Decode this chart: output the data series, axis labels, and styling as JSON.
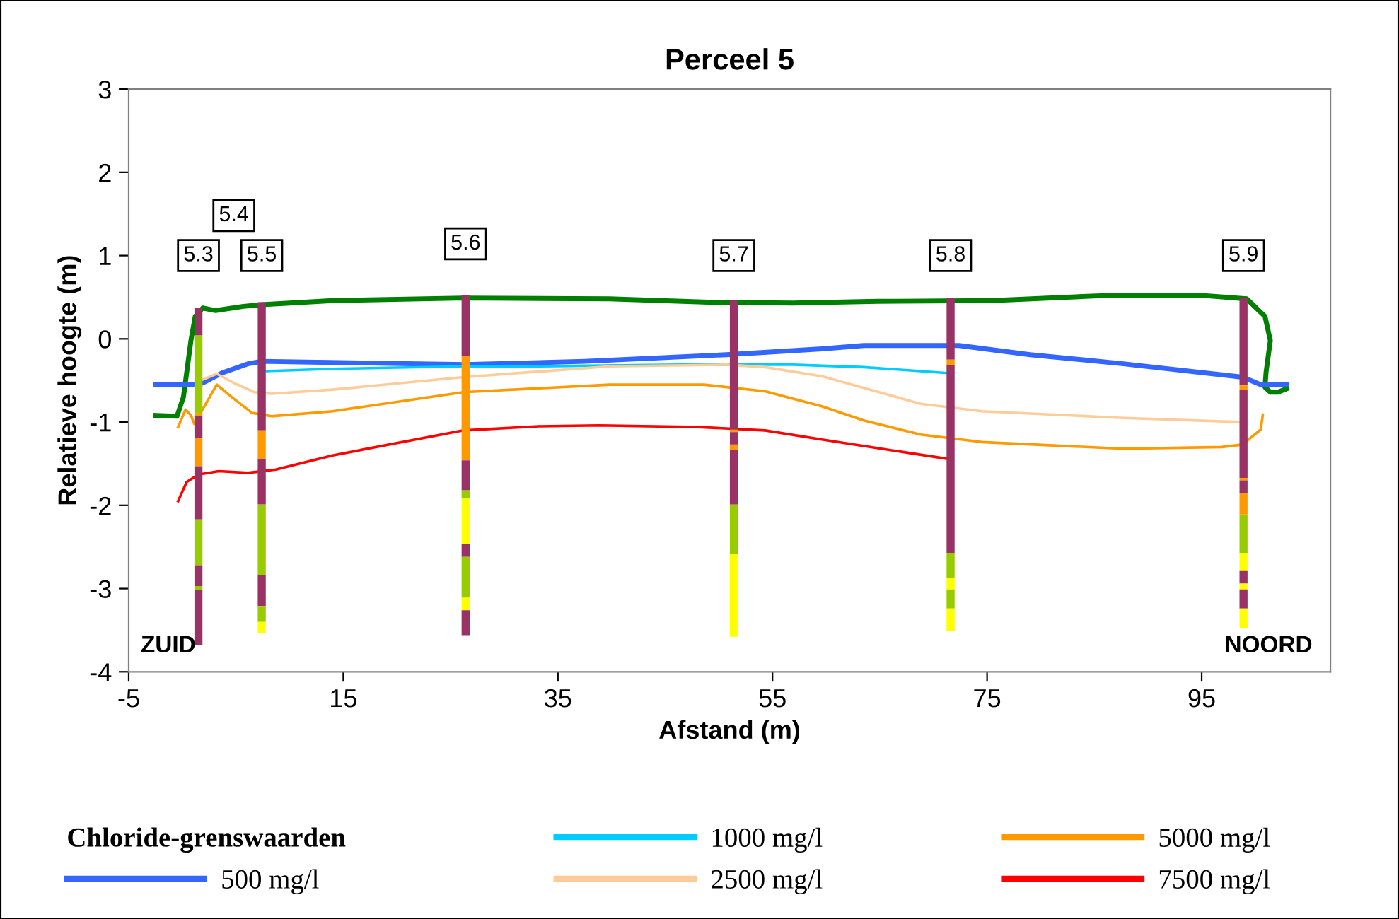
{
  "chart_data": {
    "type": "line",
    "title": "Perceel 5",
    "xlabel": "Afstand (m)",
    "ylabel": "Relatieve hoogte (m)",
    "legend_title": "Chloride-grenswaarden",
    "legend": "bottom",
    "grid": false,
    "xlim": [
      -5,
      107
    ],
    "xticks": [
      -5,
      15,
      35,
      55,
      75,
      95
    ],
    "ylim": [
      -4,
      3
    ],
    "yticks": [
      -4,
      -3,
      -2,
      -1,
      0,
      1,
      2,
      3
    ],
    "annotations": [
      {
        "text": "5.3",
        "x": 1.5,
        "y": 1.0
      },
      {
        "text": "5.4",
        "x": 4.8,
        "y": 1.48
      },
      {
        "text": "5.5",
        "x": 7.4,
        "y": 1.0
      },
      {
        "text": "5.6",
        "x": 26.4,
        "y": 1.14
      },
      {
        "text": "5.7",
        "x": 51.4,
        "y": 1.0
      },
      {
        "text": "5.8",
        "x": 71.6,
        "y": 1.0
      },
      {
        "text": "5.9",
        "x": 98.9,
        "y": 1.0
      },
      "ZUID",
      "NOORD"
    ],
    "series": [
      {
        "color": "#008000",
        "x": [
          -2.5,
          -0.5,
          0.1,
          0.8,
          1.2,
          1.9,
          3.1,
          5.7,
          7.4,
          14.0,
          26.2,
          39.8,
          49.0,
          56.9,
          64.8,
          75.4,
          86.0,
          95.2,
          99.2,
          100.9,
          101.4,
          101.0,
          100.9,
          101.4,
          102.1,
          102.9
        ],
        "values": [
          -0.92,
          -0.93,
          -0.7,
          -0.02,
          0.27,
          0.37,
          0.34,
          0.39,
          0.41,
          0.46,
          0.49,
          0.48,
          0.44,
          0.43,
          0.45,
          0.46,
          0.52,
          0.52,
          0.48,
          0.27,
          -0.02,
          -0.4,
          -0.58,
          -0.64,
          -0.64,
          -0.6
        ]
      },
      {
        "name": "500 mg/l",
        "color": "#3366ff",
        "x": [
          -2.5,
          0.8,
          1.9,
          3.7,
          6.1,
          7.4,
          26.4,
          37.5,
          50.7,
          59.6,
          63.5,
          72.4,
          79.0,
          87.7,
          98.8,
          100.5,
          102.9
        ],
        "values": [
          -0.55,
          -0.55,
          -0.53,
          -0.41,
          -0.3,
          -0.27,
          -0.31,
          -0.27,
          -0.19,
          -0.12,
          -0.08,
          -0.08,
          -0.19,
          -0.3,
          -0.46,
          -0.55,
          -0.55
        ]
      },
      {
        "name": "1000 mg/l",
        "color": "#00ccff",
        "x": [
          7.4,
          14.0,
          26.2,
          33.2,
          46.4,
          54.3,
          56.9,
          63.5,
          71.2
        ],
        "values": [
          -0.39,
          -0.36,
          -0.33,
          -0.33,
          -0.31,
          -0.31,
          -0.31,
          -0.34,
          -0.41
        ]
      },
      {
        "name": "2500 mg/l",
        "color": "#ffcc99",
        "x": [
          1.5,
          3.2,
          4.8,
          6.7,
          8.3,
          14.0,
          26.2,
          39.8,
          50.7,
          54.3,
          59.6,
          68.8,
          74.5,
          87.7,
          98.8
        ],
        "values": [
          -0.51,
          -0.42,
          -0.53,
          -0.64,
          -0.66,
          -0.61,
          -0.46,
          -0.33,
          -0.31,
          -0.34,
          -0.45,
          -0.78,
          -0.87,
          -0.95,
          -1.0
        ]
      },
      {
        "name": "5000 mg/l",
        "color": "#ff9900",
        "x": [
          -0.4,
          0.3,
          0.8,
          1.1,
          1.7,
          3.2,
          4.8,
          6.5,
          8.3,
          14.0,
          26.2,
          39.8,
          48.6,
          54.3,
          59.6,
          63.5,
          68.8,
          74.5,
          87.7,
          96.9,
          98.8,
          100.5,
          100.7
        ],
        "values": [
          -1.06,
          -0.85,
          -0.92,
          -1.02,
          -0.89,
          -0.55,
          -0.72,
          -0.89,
          -0.93,
          -0.87,
          -0.64,
          -0.55,
          -0.55,
          -0.63,
          -0.81,
          -0.98,
          -1.15,
          -1.24,
          -1.32,
          -1.3,
          -1.27,
          -1.09,
          -0.91
        ]
      },
      {
        "name": "7500 mg/l",
        "color": "#ff0000",
        "x": [
          -0.4,
          0.4,
          1.5,
          3.4,
          6.1,
          8.7,
          14.0,
          26.2,
          33.2,
          38.8,
          48.1,
          54.3,
          59.6,
          71.2
        ],
        "values": [
          -1.95,
          -1.72,
          -1.63,
          -1.59,
          -1.61,
          -1.57,
          -1.4,
          -1.1,
          -1.05,
          -1.04,
          -1.06,
          -1.1,
          -1.21,
          -1.44
        ]
      },
      {
        "type": "bar",
        "x": [
          1.5,
          7.4,
          26.4,
          51.4,
          71.6,
          98.9
        ],
        "base": [
          0.04,
          -1.1,
          -0.2,
          -1.09,
          -0.25,
          -0.56
        ],
        "values": [
          0.33,
          1.54,
          0.73,
          1.55,
          0.74,
          1.05
        ],
        "colors": [
          "#993366",
          "#993366",
          "#993366",
          "#993366",
          "#993366",
          "#993366"
        ]
      },
      {
        "type": "bar",
        "x": [
          1.5,
          7.4,
          26.4,
          51.4,
          71.6,
          98.9
        ],
        "base": [
          -0.89,
          -1.44,
          -1.46,
          -1.12,
          -0.32,
          -0.61
        ],
        "values": [
          0.93,
          0.34,
          1.26,
          0.03,
          0.07,
          0.05
        ],
        "colors": [
          "#99cc00",
          "#ff9900",
          "#ff9900",
          "#ff9900",
          "#ff9900",
          "#ff9900"
        ]
      },
      {
        "type": "bar",
        "x": [
          1.5,
          7.4,
          26.4,
          51.4,
          71.6,
          98.9
        ],
        "base": [
          -0.93,
          -1.99,
          -1.82,
          -1.27,
          -2.57,
          -1.67
        ],
        "values": [
          0.04,
          0.55,
          0.36,
          0.15,
          2.25,
          1.06
        ],
        "colors": [
          "#ff9900",
          "#993366",
          "#993366",
          "#993366",
          "#993366",
          "#993366"
        ]
      },
      {
        "type": "bar",
        "x": [
          1.5,
          7.4,
          26.4,
          51.4,
          71.6,
          98.9
        ],
        "base": [
          -1.19,
          -2.84,
          -1.92,
          -1.34,
          -2.87,
          -1.7
        ],
        "values": [
          0.26,
          0.85,
          0.1,
          0.07,
          0.3,
          0.03
        ],
        "colors": [
          "#993366",
          "#99cc00",
          "#99cc00",
          "#ff9900",
          "#99cc00",
          "#ff9900"
        ]
      },
      {
        "type": "bar",
        "x": [
          1.5,
          7.4,
          26.4,
          51.4,
          71.6,
          98.9
        ],
        "base": [
          -1.53,
          -3.21,
          -2.46,
          -1.99,
          -3.01,
          -1.85
        ],
        "values": [
          0.34,
          0.37,
          0.54,
          0.65,
          0.14,
          0.15
        ],
        "colors": [
          "#ff9900",
          "#993366",
          "#ffff00",
          "#993366",
          "#ffff00",
          "#993366"
        ]
      },
      {
        "type": "bar",
        "x": [
          1.5,
          7.4,
          26.4,
          51.4,
          71.6,
          98.9
        ],
        "base": [
          -2.17,
          -3.4,
          -2.62,
          -2.58,
          -3.24,
          -2.11
        ],
        "values": [
          0.64,
          0.19,
          0.16,
          0.59,
          0.23,
          0.26
        ],
        "colors": [
          "#993366",
          "#99cc00",
          "#993366",
          "#99cc00",
          "#99cc00",
          "#ff9900"
        ]
      },
      {
        "type": "bar",
        "x": [
          1.5,
          7.4,
          26.4,
          51.4,
          71.6,
          98.9
        ],
        "base": [
          -2.72,
          -3.53,
          -3.11,
          -3.58,
          -3.51,
          -2.57
        ],
        "values": [
          0.55,
          0.13,
          0.49,
          1.0,
          0.27,
          0.46
        ],
        "colors": [
          "#99cc00",
          "#ffff00",
          "#99cc00",
          "#ffff00",
          "#ffff00",
          "#99cc00"
        ]
      },
      {
        "type": "bar",
        "x": [
          1.5,
          26.4,
          98.9
        ],
        "base": [
          -2.97,
          -3.26,
          -2.79
        ],
        "values": [
          0.25,
          0.15,
          0.22
        ],
        "colors": [
          "#993366",
          "#ffff00",
          "#ffff00"
        ]
      },
      {
        "type": "bar",
        "x": [
          1.5,
          26.4,
          98.9
        ],
        "base": [
          -3.02,
          -3.56,
          -2.94
        ],
        "values": [
          0.05,
          0.3,
          0.15
        ],
        "colors": [
          "#99cc00",
          "#993366",
          "#993366"
        ]
      },
      {
        "type": "bar",
        "x": [
          1.5,
          98.9
        ],
        "base": [
          -3.68,
          -3.01
        ],
        "values": [
          0.66,
          0.07
        ],
        "colors": [
          "#993366",
          "#ffff00"
        ]
      },
      {
        "type": "bar",
        "x": [
          98.9
        ],
        "base": [
          -3.24
        ],
        "values": [
          0.23
        ],
        "colors": [
          "#993366"
        ]
      },
      {
        "type": "bar",
        "x": [
          98.9
        ],
        "base": [
          -3.48
        ],
        "values": [
          0.24
        ],
        "colors": [
          "#ffff00"
        ]
      }
    ]
  }
}
